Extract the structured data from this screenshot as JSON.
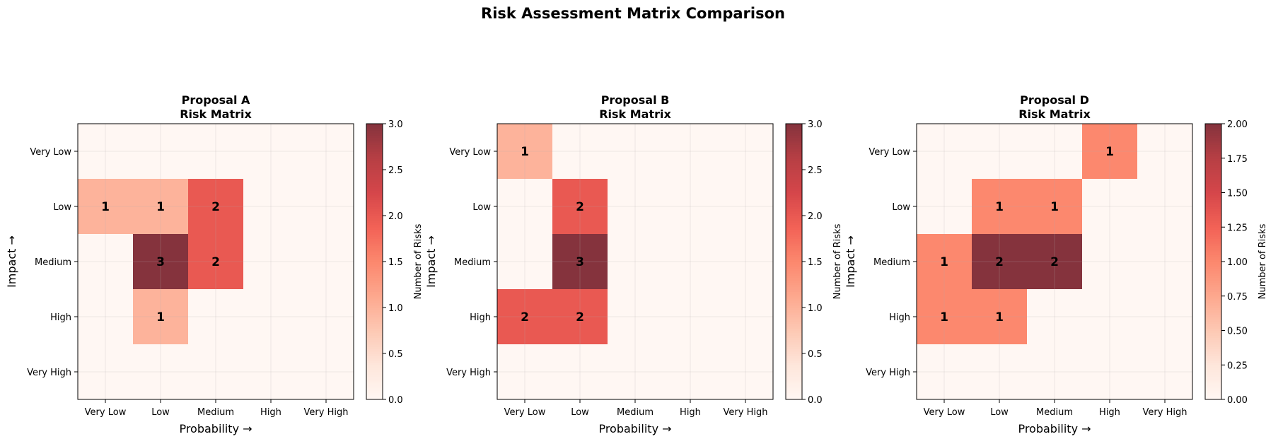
{
  "figure": {
    "title": "Risk Assessment Matrix Comparison"
  },
  "colormap": {
    "name": "Reds",
    "alpha": 0.8,
    "stops": [
      "#fff5f0",
      "#fee0d2",
      "#fcbba1",
      "#fc9272",
      "#fb6a4a",
      "#ef3b2c",
      "#cb181d",
      "#a50f15",
      "#67000d"
    ]
  },
  "chart_data": [
    {
      "type": "heatmap",
      "title": "Proposal A\nRisk Matrix",
      "xlabel": "Probability →",
      "ylabel": "Impact →",
      "x_categories": [
        "Very Low",
        "Low",
        "Medium",
        "High",
        "Very High"
      ],
      "y_categories": [
        "Very Low",
        "Low",
        "Medium",
        "High",
        "Very High"
      ],
      "values": [
        [
          0,
          0,
          0,
          0,
          0
        ],
        [
          1,
          1,
          2,
          0,
          0
        ],
        [
          0,
          3,
          2,
          0,
          0
        ],
        [
          0,
          1,
          0,
          0,
          0
        ],
        [
          0,
          0,
          0,
          0,
          0
        ]
      ],
      "grid": true,
      "colorbar": {
        "label": "Number of Risks",
        "range": [
          0,
          3
        ],
        "ticks": [
          "0.0",
          "0.5",
          "1.0",
          "1.5",
          "2.0",
          "2.5",
          "3.0"
        ]
      }
    },
    {
      "type": "heatmap",
      "title": "Proposal B\nRisk Matrix",
      "xlabel": "Probability →",
      "ylabel": "Impact →",
      "x_categories": [
        "Very Low",
        "Low",
        "Medium",
        "High",
        "Very High"
      ],
      "y_categories": [
        "Very Low",
        "Low",
        "Medium",
        "High",
        "Very High"
      ],
      "values": [
        [
          1,
          0,
          0,
          0,
          0
        ],
        [
          0,
          2,
          0,
          0,
          0
        ],
        [
          0,
          3,
          0,
          0,
          0
        ],
        [
          2,
          2,
          0,
          0,
          0
        ],
        [
          0,
          0,
          0,
          0,
          0
        ]
      ],
      "grid": true,
      "colorbar": {
        "label": "Number of Risks",
        "range": [
          0,
          3
        ],
        "ticks": [
          "0.0",
          "0.5",
          "1.0",
          "1.5",
          "2.0",
          "2.5",
          "3.0"
        ]
      }
    },
    {
      "type": "heatmap",
      "title": "Proposal D\nRisk Matrix",
      "xlabel": "Probability →",
      "ylabel": "Impact →",
      "x_categories": [
        "Very Low",
        "Low",
        "Medium",
        "High",
        "Very High"
      ],
      "y_categories": [
        "Very Low",
        "Low",
        "Medium",
        "High",
        "Very High"
      ],
      "values": [
        [
          0,
          0,
          0,
          1,
          0
        ],
        [
          0,
          1,
          1,
          0,
          0
        ],
        [
          1,
          2,
          2,
          0,
          0
        ],
        [
          1,
          1,
          0,
          0,
          0
        ],
        [
          0,
          0,
          0,
          0,
          0
        ]
      ],
      "grid": true,
      "colorbar": {
        "label": "Number of Risks",
        "range": [
          0,
          2
        ],
        "ticks": [
          "0.00",
          "0.25",
          "0.50",
          "0.75",
          "1.00",
          "1.25",
          "1.50",
          "1.75",
          "2.00"
        ]
      }
    }
  ]
}
